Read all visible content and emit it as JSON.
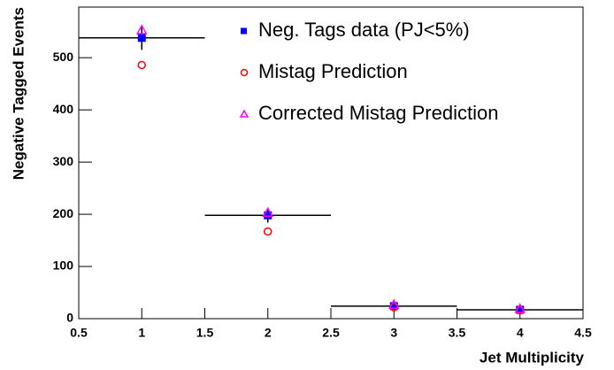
{
  "chart_data": {
    "type": "scatter",
    "x_label": "Jet Multiplicity",
    "y_label": "Negative Tagged Events",
    "x": [
      1,
      2,
      3,
      4
    ],
    "x_errors": [
      0.5,
      0.5,
      0.5,
      0.5
    ],
    "series": [
      {
        "name": "Neg. Tags data (PJ<5%)",
        "color": "#0000ff",
        "marker": "square",
        "values": [
          538,
          198,
          24,
          17
        ],
        "errors": [
          23,
          14,
          5,
          4
        ]
      },
      {
        "name": "Mistag Prediction",
        "color": "#ff0000",
        "marker": "circle",
        "values": [
          486,
          167,
          22,
          16
        ]
      },
      {
        "name": "Corrected Mistag Prediction",
        "color": "#ff00ff",
        "marker": "triangle",
        "values": [
          553,
          203,
          27,
          19
        ]
      }
    ],
    "xlim": [
      0.5,
      4.5
    ],
    "ylim": [
      0,
      597
    ],
    "xticks": [
      0.5,
      1,
      1.5,
      2,
      2.5,
      3,
      3.5,
      4,
      4.5
    ],
    "yticks": [
      0,
      100,
      200,
      300,
      400,
      500
    ]
  }
}
